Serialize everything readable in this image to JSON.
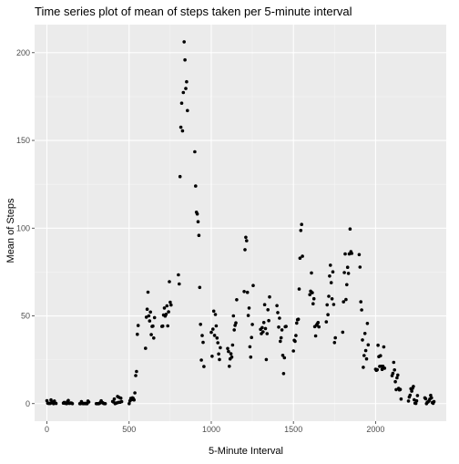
{
  "chart_data": {
    "type": "scatter",
    "title": "Time series plot of mean of steps taken per 5-minute interval",
    "xlabel": "5-Minute Interval",
    "ylabel": "Mean of Steps",
    "xlim": [
      -75,
      2430
    ],
    "ylim": [
      -10,
      216
    ],
    "x_ticks": [
      0,
      500,
      1000,
      1500,
      2000
    ],
    "y_ticks": [
      0,
      50,
      100,
      150,
      200
    ],
    "grid": true,
    "legend": "none",
    "colors": {
      "panel": "#ebebeb",
      "grid_major": "#ffffff",
      "grid_minor": "#f5f5f5",
      "point": "#000000"
    },
    "points": [
      [
        0,
        1.7
      ],
      [
        5,
        0.3
      ],
      [
        10,
        0.1
      ],
      [
        15,
        0.2
      ],
      [
        20,
        0.1
      ],
      [
        25,
        2.1
      ],
      [
        30,
        0.5
      ],
      [
        35,
        0.9
      ],
      [
        40,
        0
      ],
      [
        45,
        1.5
      ],
      [
        50,
        0.3
      ],
      [
        55,
        0.1
      ],
      [
        100,
        0.3
      ],
      [
        105,
        0.7
      ],
      [
        110,
        0.2
      ],
      [
        115,
        0.3
      ],
      [
        120,
        0
      ],
      [
        125,
        1.1
      ],
      [
        130,
        1.8
      ],
      [
        135,
        0.2
      ],
      [
        140,
        0.2
      ],
      [
        145,
        0.4
      ],
      [
        150,
        0.3
      ],
      [
        155,
        0
      ],
      [
        200,
        0
      ],
      [
        205,
        0
      ],
      [
        210,
        1.1
      ],
      [
        215,
        0.3
      ],
      [
        220,
        0
      ],
      [
        225,
        0.1
      ],
      [
        230,
        0
      ],
      [
        235,
        0.2
      ],
      [
        240,
        0
      ],
      [
        245,
        0
      ],
      [
        250,
        1.5
      ],
      [
        255,
        0.9
      ],
      [
        300,
        0
      ],
      [
        305,
        0
      ],
      [
        310,
        0
      ],
      [
        315,
        0
      ],
      [
        320,
        0.2
      ],
      [
        325,
        0.6
      ],
      [
        330,
        1.6
      ],
      [
        335,
        0.6
      ],
      [
        340,
        0.5
      ],
      [
        345,
        0.1
      ],
      [
        350,
        0
      ],
      [
        355,
        0
      ],
      [
        400,
        1.2
      ],
      [
        405,
        0.9
      ],
      [
        410,
        2.6
      ],
      [
        415,
        0
      ],
      [
        420,
        0.3
      ],
      [
        425,
        0.4
      ],
      [
        430,
        4.1
      ],
      [
        435,
        0.7
      ],
      [
        440,
        3.5
      ],
      [
        445,
        0.8
      ],
      [
        450,
        3.1
      ],
      [
        455,
        1.1
      ],
      [
        500,
        0
      ],
      [
        505,
        1.6
      ],
      [
        510,
        3
      ],
      [
        515,
        2.2
      ],
      [
        520,
        3.3
      ],
      [
        525,
        3
      ],
      [
        530,
        2.1
      ],
      [
        535,
        6.1
      ],
      [
        540,
        16
      ],
      [
        545,
        18.3
      ],
      [
        550,
        39.5
      ],
      [
        555,
        44.5
      ],
      [
        600,
        31.5
      ],
      [
        605,
        49.3
      ],
      [
        610,
        53.8
      ],
      [
        615,
        63.5
      ],
      [
        620,
        50
      ],
      [
        625,
        47.1
      ],
      [
        630,
        52.2
      ],
      [
        635,
        39.3
      ],
      [
        640,
        44
      ],
      [
        645,
        44.2
      ],
      [
        650,
        37.4
      ],
      [
        655,
        49
      ],
      [
        700,
        44
      ],
      [
        705,
        44.2
      ],
      [
        710,
        50.5
      ],
      [
        715,
        54.5
      ],
      [
        720,
        49.9
      ],
      [
        725,
        50.9
      ],
      [
        730,
        55.7
      ],
      [
        735,
        44.3
      ],
      [
        740,
        52.3
      ],
      [
        745,
        69.5
      ],
      [
        750,
        57.8
      ],
      [
        755,
        56.2
      ],
      [
        800,
        73.4
      ],
      [
        805,
        68.2
      ],
      [
        810,
        129.4
      ],
      [
        815,
        157.5
      ],
      [
        820,
        171.2
      ],
      [
        825,
        155.4
      ],
      [
        830,
        177.3
      ],
      [
        835,
        206.2
      ],
      [
        840,
        195.9
      ],
      [
        845,
        179.6
      ],
      [
        850,
        183.4
      ],
      [
        855,
        167
      ],
      [
        900,
        143.5
      ],
      [
        905,
        124
      ],
      [
        910,
        109.1
      ],
      [
        915,
        108.1
      ],
      [
        920,
        103.7
      ],
      [
        925,
        95.9
      ],
      [
        930,
        66.2
      ],
      [
        935,
        45.2
      ],
      [
        940,
        24.8
      ],
      [
        945,
        38.8
      ],
      [
        950,
        34.9
      ],
      [
        955,
        21.1
      ],
      [
        1000,
        40.6
      ],
      [
        1005,
        27
      ],
      [
        1010,
        42.4
      ],
      [
        1015,
        52.7
      ],
      [
        1020,
        38.9
      ],
      [
        1025,
        50.8
      ],
      [
        1030,
        44.3
      ],
      [
        1035,
        37.4
      ],
      [
        1040,
        34.7
      ],
      [
        1045,
        28.3
      ],
      [
        1050,
        25.1
      ],
      [
        1055,
        31.9
      ],
      [
        1100,
        31.4
      ],
      [
        1105,
        29.7
      ],
      [
        1110,
        21.3
      ],
      [
        1115,
        25.5
      ],
      [
        1120,
        28.4
      ],
      [
        1125,
        26.5
      ],
      [
        1130,
        33.4
      ],
      [
        1135,
        50
      ],
      [
        1140,
        42
      ],
      [
        1145,
        44.6
      ],
      [
        1150,
        46
      ],
      [
        1155,
        59.2
      ],
      [
        1200,
        63.9
      ],
      [
        1205,
        87.7
      ],
      [
        1210,
        94.8
      ],
      [
        1215,
        92.8
      ],
      [
        1220,
        63.4
      ],
      [
        1225,
        50.2
      ],
      [
        1230,
        54.5
      ],
      [
        1235,
        32.4
      ],
      [
        1240,
        26.5
      ],
      [
        1245,
        37.7
      ],
      [
        1250,
        45.1
      ],
      [
        1255,
        67.3
      ],
      [
        1300,
        42.3
      ],
      [
        1305,
        39.9
      ],
      [
        1310,
        43.3
      ],
      [
        1315,
        40.9
      ],
      [
        1320,
        46.2
      ],
      [
        1325,
        56.4
      ],
      [
        1330,
        42.8
      ],
      [
        1335,
        25.1
      ],
      [
        1340,
        39.9
      ],
      [
        1345,
        53.5
      ],
      [
        1350,
        47.3
      ],
      [
        1355,
        60.8
      ],
      [
        1400,
        55.8
      ],
      [
        1405,
        51.9
      ],
      [
        1410,
        43.6
      ],
      [
        1415,
        48.7
      ],
      [
        1420,
        35.5
      ],
      [
        1425,
        37.5
      ],
      [
        1430,
        42
      ],
      [
        1435,
        27.5
      ],
      [
        1440,
        17.1
      ],
      [
        1445,
        26.1
      ],
      [
        1450,
        43.8
      ],
      [
        1455,
        44
      ],
      [
        1500,
        30
      ],
      [
        1505,
        36.1
      ],
      [
        1510,
        35.5
      ],
      [
        1515,
        38.8
      ],
      [
        1520,
        45.9
      ],
      [
        1525,
        47.8
      ],
      [
        1530,
        48.1
      ],
      [
        1535,
        65.3
      ],
      [
        1540,
        82.9
      ],
      [
        1545,
        98.7
      ],
      [
        1550,
        102.1
      ],
      [
        1555,
        84
      ],
      [
        1600,
        62.1
      ],
      [
        1605,
        64.1
      ],
      [
        1610,
        74.5
      ],
      [
        1615,
        63.2
      ],
      [
        1620,
        56.9
      ],
      [
        1625,
        59.8
      ],
      [
        1630,
        43.9
      ],
      [
        1635,
        38.6
      ],
      [
        1640,
        44.7
      ],
      [
        1645,
        45.5
      ],
      [
        1650,
        46.2
      ],
      [
        1655,
        43.7
      ],
      [
        1700,
        46.6
      ],
      [
        1705,
        56.3
      ],
      [
        1710,
        50.7
      ],
      [
        1715,
        61.2
      ],
      [
        1720,
        72.7
      ],
      [
        1725,
        78.9
      ],
      [
        1730,
        68.9
      ],
      [
        1735,
        59.7
      ],
      [
        1740,
        75.1
      ],
      [
        1745,
        56.5
      ],
      [
        1750,
        34.8
      ],
      [
        1755,
        37.5
      ],
      [
        1800,
        40.7
      ],
      [
        1805,
        58
      ],
      [
        1810,
        74.7
      ],
      [
        1815,
        85.3
      ],
      [
        1820,
        59.3
      ],
      [
        1825,
        67.8
      ],
      [
        1830,
        77.7
      ],
      [
        1835,
        74.2
      ],
      [
        1840,
        85.3
      ],
      [
        1845,
        99.5
      ],
      [
        1850,
        86.6
      ],
      [
        1855,
        85.6
      ],
      [
        1900,
        84.9
      ],
      [
        1905,
        77.8
      ],
      [
        1910,
        58
      ],
      [
        1915,
        53.4
      ],
      [
        1920,
        36.3
      ],
      [
        1925,
        20.7
      ],
      [
        1930,
        27.4
      ],
      [
        1935,
        40
      ],
      [
        1940,
        30.2
      ],
      [
        1945,
        25.5
      ],
      [
        1950,
        45.7
      ],
      [
        1955,
        33.5
      ],
      [
        2000,
        19.6
      ],
      [
        2005,
        19
      ],
      [
        2010,
        19.3
      ],
      [
        2015,
        33.3
      ],
      [
        2020,
        26.8
      ],
      [
        2025,
        21.2
      ],
      [
        2030,
        27.3
      ],
      [
        2035,
        21.3
      ],
      [
        2040,
        19.5
      ],
      [
        2045,
        21.3
      ],
      [
        2050,
        32.3
      ],
      [
        2055,
        20.2
      ],
      [
        2100,
        15.9
      ],
      [
        2105,
        17.2
      ],
      [
        2110,
        23.5
      ],
      [
        2115,
        19.2
      ],
      [
        2120,
        12.5
      ],
      [
        2125,
        8
      ],
      [
        2130,
        14.7
      ],
      [
        2135,
        16.3
      ],
      [
        2140,
        8.7
      ],
      [
        2145,
        7.8
      ],
      [
        2150,
        8.1
      ],
      [
        2155,
        2.6
      ],
      [
        2200,
        1.5
      ],
      [
        2205,
        3.7
      ],
      [
        2210,
        4.8
      ],
      [
        2215,
        8.5
      ],
      [
        2220,
        7.1
      ],
      [
        2225,
        8.7
      ],
      [
        2230,
        9.8
      ],
      [
        2235,
        2.2
      ],
      [
        2240,
        0.3
      ],
      [
        2245,
        0.1
      ],
      [
        2250,
        1.6
      ],
      [
        2255,
        4.6
      ],
      [
        2300,
        3.3
      ],
      [
        2305,
        2.8
      ],
      [
        2310,
        0
      ],
      [
        2315,
        0.8
      ],
      [
        2320,
        1
      ],
      [
        2325,
        1.6
      ],
      [
        2330,
        2.6
      ],
      [
        2335,
        4.7
      ],
      [
        2340,
        3.3
      ],
      [
        2345,
        0.6
      ],
      [
        2350,
        0.2
      ],
      [
        2355,
        1.1
      ]
    ]
  }
}
